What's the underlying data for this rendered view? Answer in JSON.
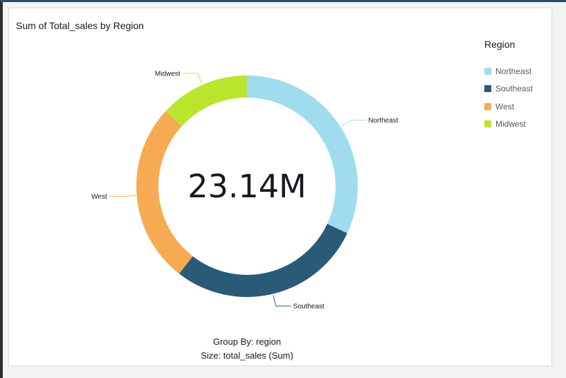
{
  "chart_data": {
    "type": "pie",
    "title": "Sum of Total_sales by Region",
    "center_value": "23.14M",
    "categories": [
      "Northeast",
      "Southeast",
      "West",
      "Midwest"
    ],
    "values": [
      7.4,
      6.6,
      6.1,
      3.04
    ],
    "colors": [
      "#a0dcef",
      "#2a5b76",
      "#f7aa52",
      "#bae52d"
    ],
    "legend": {
      "title": "Region",
      "position": "right"
    },
    "group_by_text": "Group By: region",
    "size_text": "Size: total_sales (Sum)"
  }
}
